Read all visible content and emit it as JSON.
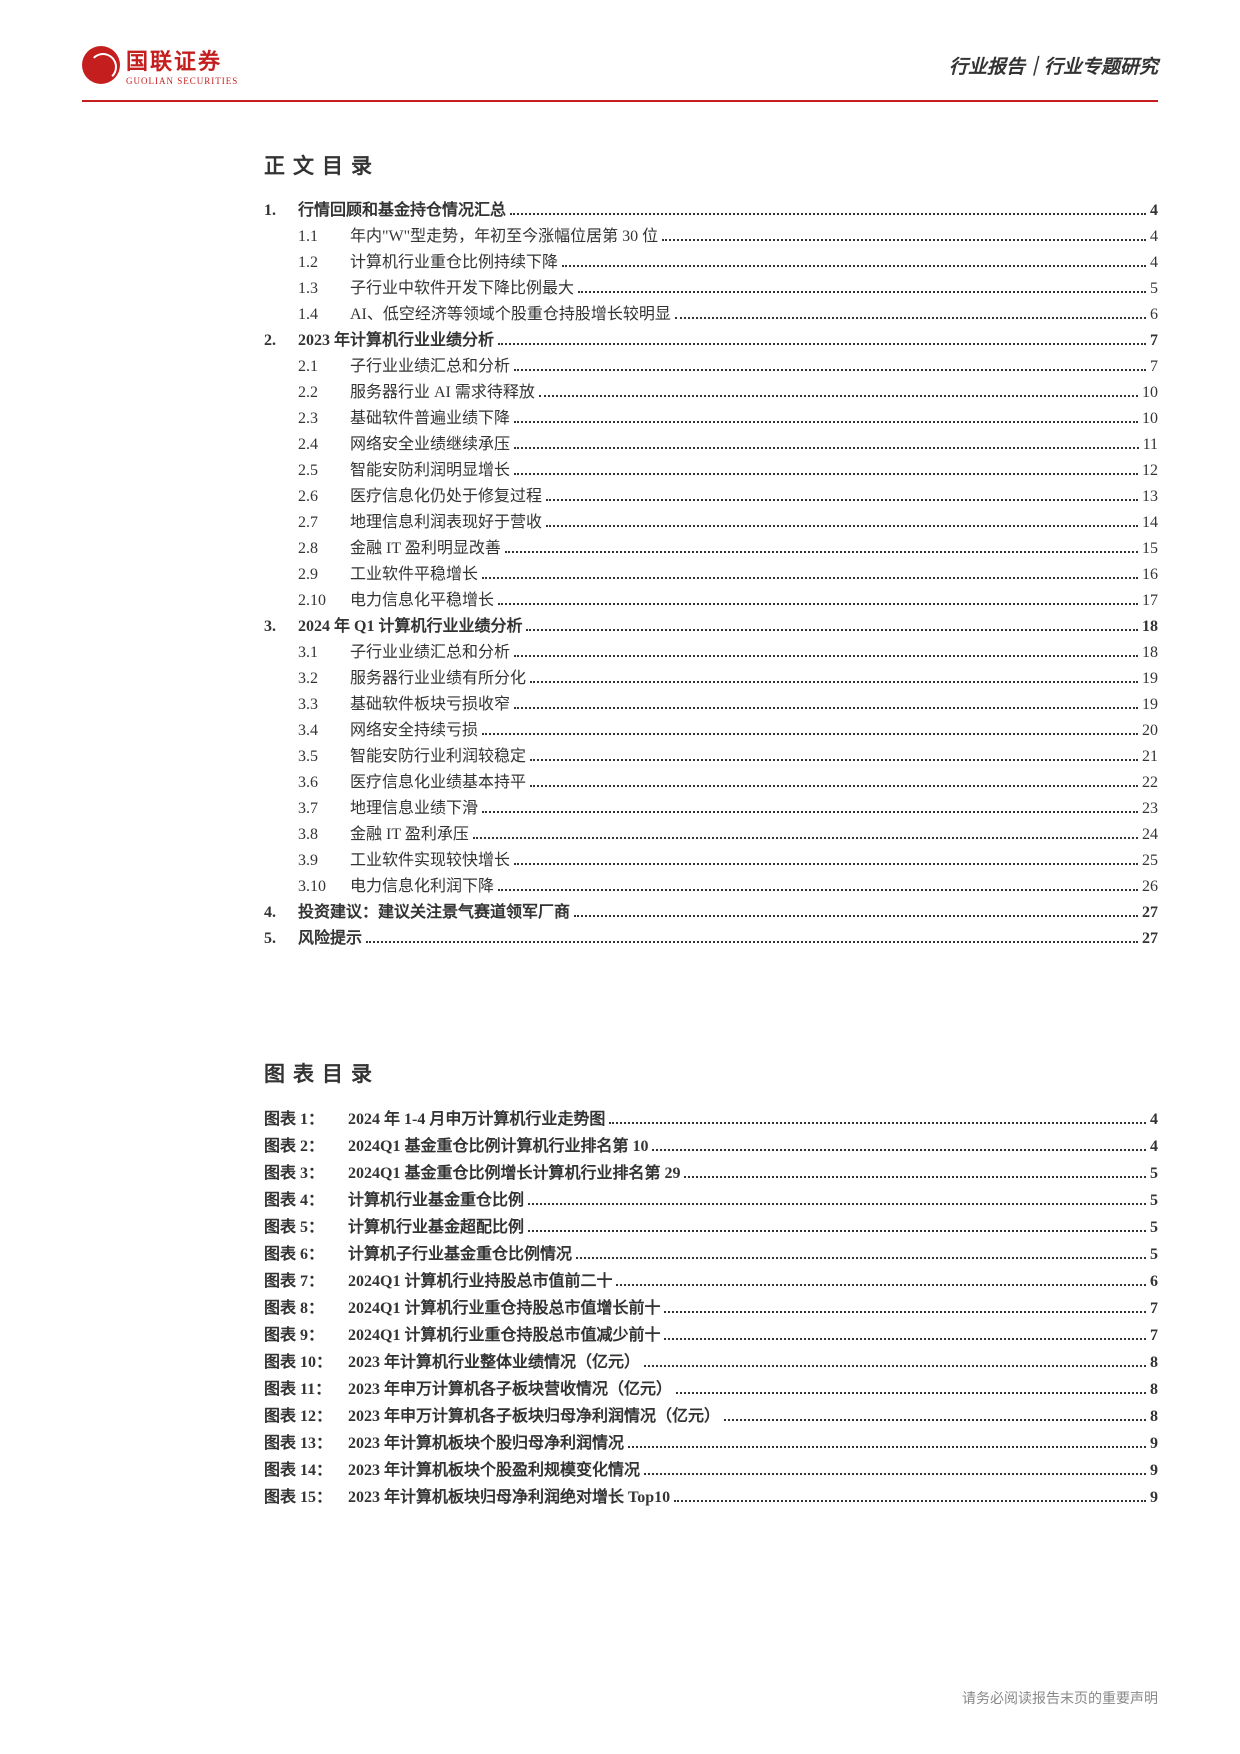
{
  "header": {
    "logo_cn": "国联证券",
    "logo_en": "GUOLIAN SECURITIES",
    "right": "行业报告｜行业专题研究"
  },
  "toc_heading": "正文目录",
  "toc": [
    {
      "type": "l1",
      "num": "1.",
      "title": "行情回顾和基金持仓情况汇总",
      "page": "4"
    },
    {
      "type": "l2",
      "num": "1.1",
      "title": "年内\"W\"型走势，年初至今涨幅位居第 30 位",
      "page": "4"
    },
    {
      "type": "l2",
      "num": "1.2",
      "title": "计算机行业重仓比例持续下降",
      "page": "4"
    },
    {
      "type": "l2",
      "num": "1.3",
      "title": "子行业中软件开发下降比例最大",
      "page": "5"
    },
    {
      "type": "l2",
      "num": "1.4",
      "title": "AI、低空经济等领域个股重仓持股增长较明显",
      "page": "6"
    },
    {
      "type": "l1",
      "num": "2.",
      "title": "2023 年计算机行业业绩分析",
      "page": "7"
    },
    {
      "type": "l2",
      "num": "2.1",
      "title": "子行业业绩汇总和分析",
      "page": "7"
    },
    {
      "type": "l2",
      "num": "2.2",
      "title": "服务器行业 AI 需求待释放",
      "page": "10"
    },
    {
      "type": "l2",
      "num": "2.3",
      "title": "基础软件普遍业绩下降",
      "page": "10"
    },
    {
      "type": "l2",
      "num": "2.4",
      "title": "网络安全业绩继续承压",
      "page": "11"
    },
    {
      "type": "l2",
      "num": "2.5",
      "title": "智能安防利润明显增长",
      "page": "12"
    },
    {
      "type": "l2",
      "num": "2.6",
      "title": "医疗信息化仍处于修复过程",
      "page": "13"
    },
    {
      "type": "l2",
      "num": "2.7",
      "title": "地理信息利润表现好于营收",
      "page": "14"
    },
    {
      "type": "l2",
      "num": "2.8",
      "title": "金融 IT 盈利明显改善",
      "page": "15"
    },
    {
      "type": "l2",
      "num": "2.9",
      "title": "工业软件平稳增长",
      "page": "16"
    },
    {
      "type": "l2",
      "num": "2.10",
      "title": "电力信息化平稳增长",
      "page": "17"
    },
    {
      "type": "l1",
      "num": "3.",
      "title": "2024 年 Q1 计算机行业业绩分析",
      "page": "18"
    },
    {
      "type": "l2",
      "num": "3.1",
      "title": "子行业业绩汇总和分析",
      "page": "18"
    },
    {
      "type": "l2",
      "num": "3.2",
      "title": "服务器行业业绩有所分化",
      "page": "19"
    },
    {
      "type": "l2",
      "num": "3.3",
      "title": "基础软件板块亏损收窄",
      "page": "19"
    },
    {
      "type": "l2",
      "num": "3.4",
      "title": "网络安全持续亏损",
      "page": "20"
    },
    {
      "type": "l2",
      "num": "3.5",
      "title": "智能安防行业利润较稳定",
      "page": "21"
    },
    {
      "type": "l2",
      "num": "3.6",
      "title": "医疗信息化业绩基本持平",
      "page": "22"
    },
    {
      "type": "l2",
      "num": "3.7",
      "title": "地理信息业绩下滑",
      "page": "23"
    },
    {
      "type": "l2",
      "num": "3.8",
      "title": "金融 IT 盈利承压",
      "page": "24"
    },
    {
      "type": "l2",
      "num": "3.9",
      "title": "工业软件实现较快增长",
      "page": "25"
    },
    {
      "type": "l2",
      "num": "3.10",
      "title": "电力信息化利润下降",
      "page": "26"
    },
    {
      "type": "l1",
      "num": "4.",
      "title": "投资建议：建议关注景气赛道领军厂商",
      "page": "27"
    },
    {
      "type": "l1",
      "num": "5.",
      "title": "风险提示",
      "page": "27"
    }
  ],
  "figures_heading": "图表目录",
  "figures": [
    {
      "label": "图表 1：",
      "title": "2024 年 1-4 月申万计算机行业走势图",
      "page": "4"
    },
    {
      "label": "图表 2：",
      "title": "2024Q1 基金重仓比例计算机行业排名第 10",
      "page": "4"
    },
    {
      "label": "图表 3：",
      "title": "2024Q1 基金重仓比例增长计算机行业排名第 29",
      "page": "5"
    },
    {
      "label": "图表 4：",
      "title": "计算机行业基金重仓比例",
      "page": "5"
    },
    {
      "label": "图表 5：",
      "title": "计算机行业基金超配比例",
      "page": "5"
    },
    {
      "label": "图表 6：",
      "title": "计算机子行业基金重仓比例情况",
      "page": "5"
    },
    {
      "label": "图表 7：",
      "title": "2024Q1 计算机行业持股总市值前二十",
      "page": "6"
    },
    {
      "label": "图表 8：",
      "title": "2024Q1 计算机行业重仓持股总市值增长前十",
      "page": "7"
    },
    {
      "label": "图表 9：",
      "title": "2024Q1 计算机行业重仓持股总市值减少前十",
      "page": "7"
    },
    {
      "label": "图表 10：",
      "title": "2023 年计算机行业整体业绩情况（亿元）",
      "page": "8"
    },
    {
      "label": "图表 11：",
      "title": "2023 年申万计算机各子板块营收情况（亿元）",
      "page": "8"
    },
    {
      "label": "图表 12：",
      "title": "2023 年申万计算机各子板块归母净利润情况（亿元）",
      "page": "8"
    },
    {
      "label": "图表 13：",
      "title": "2023 年计算机板块个股归母净利润情况",
      "page": "9"
    },
    {
      "label": "图表 14：",
      "title": "2023 年计算机板块个股盈利规模变化情况",
      "page": "9"
    },
    {
      "label": "图表 15：",
      "title": "2023 年计算机板块归母净利润绝对增长 Top10",
      "page": "9"
    }
  ],
  "footer": "请务必阅读报告末页的重要声明"
}
